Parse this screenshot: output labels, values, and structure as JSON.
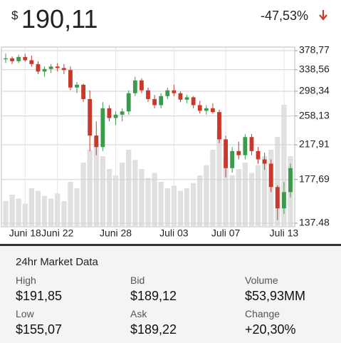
{
  "header": {
    "currency": "$",
    "price": "190,11",
    "change": "-47,53%"
  },
  "chart_data": {
    "type": "candlestick",
    "log_scale": true,
    "grid": true,
    "up_color": "#3c9a4c",
    "down_color": "#c8392b",
    "volume_color": "#e0e0e0",
    "categories": [
      null,
      null,
      null,
      "Juni 18",
      null,
      null,
      null,
      null,
      "Juni 22",
      null,
      null,
      null,
      null,
      null,
      null,
      null,
      null,
      "Juni 28",
      null,
      null,
      null,
      null,
      null,
      null,
      null,
      null,
      "Juli 03",
      null,
      null,
      null,
      null,
      null,
      null,
      null,
      "Juli 07",
      null,
      null,
      null,
      null,
      null,
      null,
      null,
      null,
      "Juli 13",
      null
    ],
    "open": [
      360,
      362,
      356,
      365,
      358,
      350,
      335,
      340,
      345,
      342,
      338,
      305,
      310,
      285,
      230,
      215,
      270,
      255,
      260,
      265,
      295,
      318,
      300,
      285,
      275,
      290,
      300,
      295,
      284,
      288,
      275,
      266,
      270,
      264,
      225,
      190,
      210,
      205,
      228,
      210,
      200,
      195,
      170,
      150,
      165
    ],
    "high": [
      372,
      366,
      370,
      372,
      368,
      356,
      345,
      350,
      352,
      350,
      345,
      315,
      312,
      300,
      250,
      280,
      275,
      265,
      270,
      300,
      325,
      322,
      305,
      292,
      295,
      305,
      310,
      298,
      292,
      290,
      282,
      275,
      278,
      268,
      230,
      215,
      222,
      232,
      232,
      215,
      208,
      200,
      172,
      175,
      195
    ],
    "low": [
      352,
      350,
      352,
      355,
      345,
      330,
      325,
      332,
      335,
      330,
      300,
      295,
      280,
      210,
      205,
      210,
      250,
      245,
      250,
      260,
      290,
      295,
      280,
      270,
      270,
      285,
      290,
      280,
      278,
      270,
      262,
      260,
      262,
      220,
      180,
      185,
      200,
      200,
      205,
      195,
      188,
      165,
      140,
      145,
      160
    ],
    "close": [
      362,
      356,
      365,
      358,
      350,
      335,
      340,
      345,
      342,
      338,
      305,
      310,
      285,
      230,
      215,
      270,
      255,
      260,
      265,
      295,
      318,
      300,
      285,
      275,
      290,
      300,
      295,
      284,
      288,
      275,
      266,
      270,
      264,
      225,
      190,
      210,
      205,
      228,
      210,
      200,
      195,
      170,
      150,
      165,
      190
    ],
    "volume": [
      20,
      25,
      22,
      18,
      30,
      28,
      24,
      22,
      26,
      20,
      35,
      30,
      50,
      60,
      65,
      55,
      45,
      40,
      50,
      60,
      52,
      45,
      38,
      42,
      35,
      30,
      32,
      28,
      30,
      34,
      40,
      48,
      60,
      75,
      55,
      40,
      45,
      50,
      42,
      48,
      55,
      60,
      70,
      95,
      55
    ],
    "ylim": [
      137.48,
      378.77
    ],
    "yticks": [
      {
        "value": 378.77,
        "label": "378,77"
      },
      {
        "value": 338.56,
        "label": "338,56"
      },
      {
        "value": 298.34,
        "label": "298,34"
      },
      {
        "value": 258.13,
        "label": "258,13"
      },
      {
        "value": 217.91,
        "label": "217,91"
      },
      {
        "value": 177.69,
        "label": "177,69"
      },
      {
        "value": 137.48,
        "label": "137.48"
      }
    ]
  },
  "market": {
    "title": "24hr Market Data",
    "items": [
      {
        "label": "High",
        "value": "$191,85"
      },
      {
        "label": "Bid",
        "value": "$189,12"
      },
      {
        "label": "Volume",
        "value": "$53,93MM"
      },
      {
        "label": "Low",
        "value": "$155,07"
      },
      {
        "label": "Ask",
        "value": "$189,22"
      },
      {
        "label": "Change",
        "value": "+20,30%"
      }
    ]
  }
}
